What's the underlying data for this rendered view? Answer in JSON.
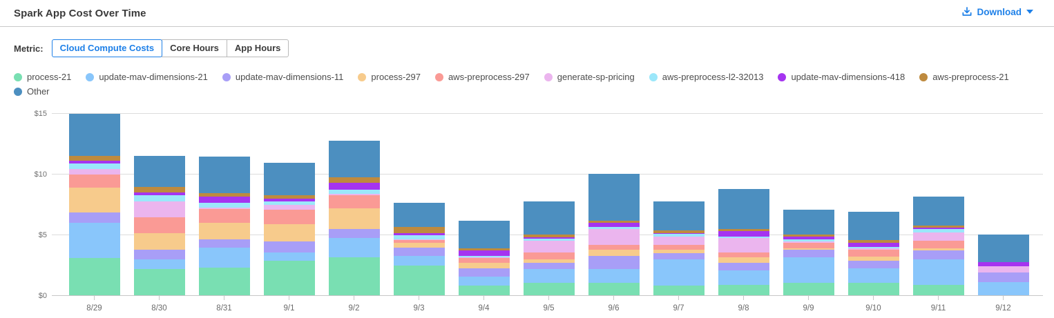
{
  "header": {
    "title": "Spark App Cost Over Time",
    "download_label": "Download"
  },
  "metric": {
    "label": "Metric:",
    "options": [
      {
        "label": "Cloud Compute Costs",
        "selected": true
      },
      {
        "label": "Core Hours",
        "selected": false
      },
      {
        "label": "App Hours",
        "selected": false
      }
    ]
  },
  "colors": {
    "accent_blue": "#1e80e8",
    "gridline": "#dcdcdc",
    "axis_line": "#c6c6c6"
  },
  "chart_data": {
    "type": "bar",
    "stacked": true,
    "title": "Spark App Cost Over Time",
    "ylabel": "",
    "xlabel": "",
    "ylim": [
      0,
      15
    ],
    "grid": true,
    "legend_position": "top",
    "yticks": [
      {
        "label": "$0",
        "value": 0
      },
      {
        "label": "$5",
        "value": 5
      },
      {
        "label": "$10",
        "value": 10
      },
      {
        "label": "$15",
        "value": 15
      }
    ],
    "categories": [
      "8/29",
      "8/30",
      "8/31",
      "9/1",
      "9/2",
      "9/3",
      "9/4",
      "9/5",
      "9/6",
      "9/7",
      "9/8",
      "9/9",
      "9/10",
      "9/11",
      "9/12"
    ],
    "series": [
      {
        "name": "process-21",
        "color": "#79dfb2",
        "values": [
          3.1,
          2.2,
          2.35,
          2.9,
          3.2,
          2.5,
          0.85,
          1.1,
          1.1,
          0.85,
          0.9,
          1.1,
          1.1,
          0.9,
          0
        ]
      },
      {
        "name": "update-mav-dimensions-21",
        "color": "#89c6fb",
        "values": [
          2.9,
          0.8,
          1.65,
          0.7,
          1.6,
          0.8,
          0.75,
          1.1,
          1.1,
          2.15,
          1.2,
          2.1,
          1.2,
          2.1,
          1.15
        ]
      },
      {
        "name": "update-mav-dimensions-11",
        "color": "#a89ef7",
        "values": [
          0.9,
          0.8,
          0.65,
          0.9,
          0.7,
          0.7,
          0.7,
          0.5,
          1.1,
          0.55,
          0.65,
          0.6,
          0.6,
          0.75,
          0.8
        ]
      },
      {
        "name": "process-297",
        "color": "#f7cb8c",
        "values": [
          2.0,
          1.4,
          1.35,
          1.4,
          1.7,
          0.35,
          0.45,
          0.3,
          0.5,
          0.25,
          0.45,
          0.15,
          0.35,
          0.2,
          0
        ]
      },
      {
        "name": "aws-preprocess-297",
        "color": "#fa9a95",
        "values": [
          1.1,
          1.3,
          1.15,
          1.2,
          1.1,
          0.25,
          0.35,
          0.6,
          0.4,
          0.4,
          0.4,
          0.4,
          0.55,
          0.6,
          0
        ]
      },
      {
        "name": "generate-sp-pricing",
        "color": "#ebb5ee",
        "values": [
          0.45,
          1.3,
          0.15,
          0.4,
          0.1,
          0.05,
          0.1,
          0.95,
          1.3,
          0.7,
          1.2,
          0.15,
          0.15,
          0.7,
          0.5
        ]
      },
      {
        "name": "aws-preprocess-l2-32013",
        "color": "#9be7fa",
        "values": [
          0.45,
          0.5,
          0.35,
          0.3,
          0.35,
          0.35,
          0.1,
          0.15,
          0.2,
          0.2,
          0.1,
          0.15,
          0.1,
          0.25,
          0
        ]
      },
      {
        "name": "update-mav-dimensions-418",
        "color": "#a534f0",
        "values": [
          0.25,
          0.25,
          0.55,
          0.2,
          0.55,
          0.2,
          0.45,
          0.15,
          0.35,
          0.1,
          0.45,
          0.25,
          0.35,
          0.15,
          0.35
        ]
      },
      {
        "name": "aws-preprocess-21",
        "color": "#be8a3e",
        "values": [
          0.4,
          0.45,
          0.25,
          0.3,
          0.5,
          0.5,
          0.15,
          0.2,
          0.15,
          0.2,
          0.15,
          0.15,
          0.2,
          0.15,
          0
        ]
      },
      {
        "name": "Other",
        "color": "#4c8fc0",
        "values": [
          3.45,
          2.55,
          3.05,
          2.7,
          3.0,
          2.0,
          2.3,
          2.75,
          3.85,
          2.4,
          3.3,
          2.05,
          2.35,
          2.4,
          2.25
        ]
      }
    ]
  }
}
